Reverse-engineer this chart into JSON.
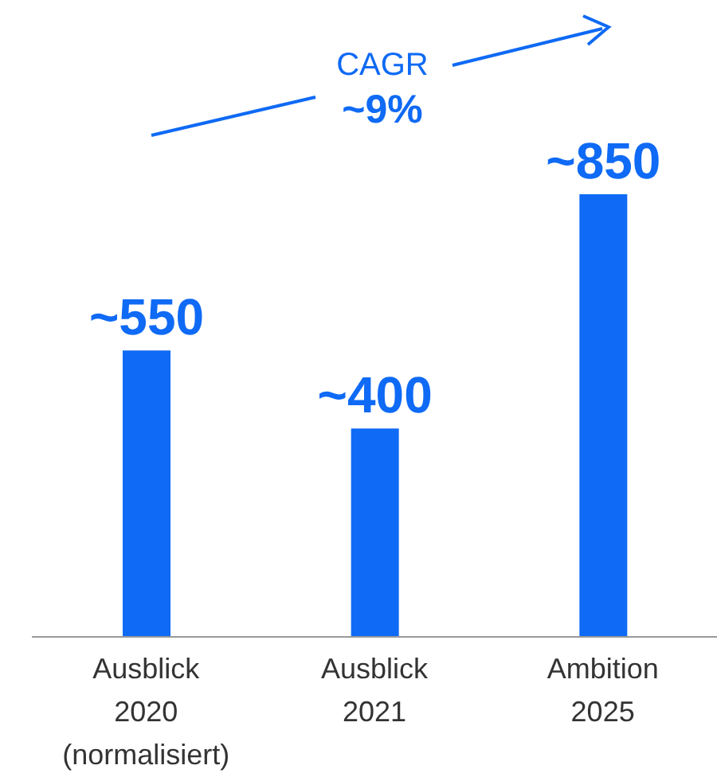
{
  "chart_data": {
    "type": "bar",
    "categories": [
      "Ausblick\n2020\n(normalisiert)",
      "Ausblick\n2021",
      "Ambition\n2025"
    ],
    "values": [
      550,
      400,
      850
    ],
    "value_labels": [
      "~550",
      "~400",
      "~850"
    ],
    "color": "#0f6af5",
    "annotations": [
      "CAGR",
      "~9%"
    ]
  }
}
